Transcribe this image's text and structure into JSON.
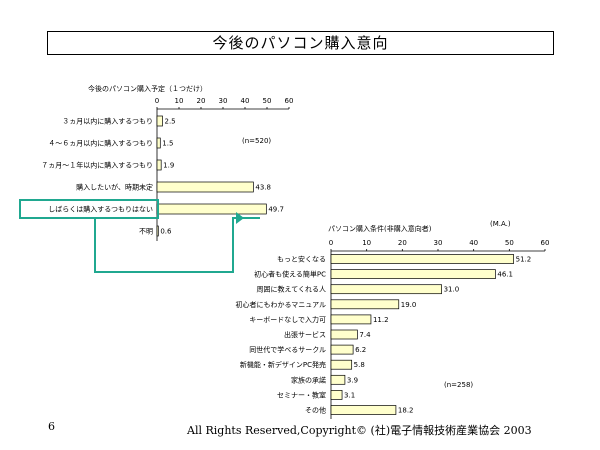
{
  "header": {
    "title": "今後のパソコン購入意向"
  },
  "footer": {
    "page_number": "6",
    "copyright": "All Rights Reserved,Copyright© (社)電子情報技術産業協会  2003"
  },
  "colors": {
    "bar_fill": "#ffffcc",
    "bar_stroke": "#000000",
    "highlight": "#20a890"
  },
  "chart_data": [
    {
      "type": "bar",
      "orientation": "horizontal",
      "title": "今後のパソコン購入予定（１つだけ）",
      "categories": [
        "３ヵ月以内に購入するつもり",
        "４～６ヵ月以内に購入するつもり",
        "７ヵ月～１年以内に購入するつもり",
        "購入したいが、時期未定",
        "しばらくは購入するつもりはない",
        "不明"
      ],
      "values": [
        2.5,
        1.5,
        1.9,
        43.8,
        49.7,
        0.6
      ],
      "value_labels": [
        "2.5",
        "1.5",
        "1.9",
        "43.8",
        "49.7",
        "0.6"
      ],
      "xlim": [
        0,
        60
      ],
      "xticks": [
        "0",
        "10",
        "20",
        "30",
        "40",
        "50",
        "60"
      ],
      "annotation": "(n=520)",
      "highlight_category": "しばらくは購入するつもりはない",
      "grid": false
    },
    {
      "type": "bar",
      "orientation": "horizontal",
      "title": "パソコン購入条件(非購入意向者)",
      "unit": "(M.A.)",
      "categories": [
        "もっと安くなる",
        "初心者も使える簡単PC",
        "周囲に教えてくれる人",
        "初心者にもわかるマニュアル",
        "キーボードなしで入力可",
        "出張サービス",
        "同世代で学べるサークル",
        "新機能・新デザインPC発売",
        "家族の承諾",
        "セミナー・教室",
        "その他"
      ],
      "values": [
        51.2,
        46.1,
        31.0,
        19.0,
        11.2,
        7.4,
        6.2,
        5.8,
        3.9,
        3.1,
        18.2
      ],
      "value_labels": [
        "51.2",
        "46.1",
        "31.0",
        "19.0",
        "11.2",
        "7.4",
        "6.2",
        "5.8",
        "3.9",
        "3.1",
        "18.2"
      ],
      "xlim": [
        0,
        60
      ],
      "xticks": [
        "0",
        "10",
        "20",
        "30",
        "40",
        "50",
        "60"
      ],
      "annotation": "(n=258)",
      "grid": false
    }
  ]
}
